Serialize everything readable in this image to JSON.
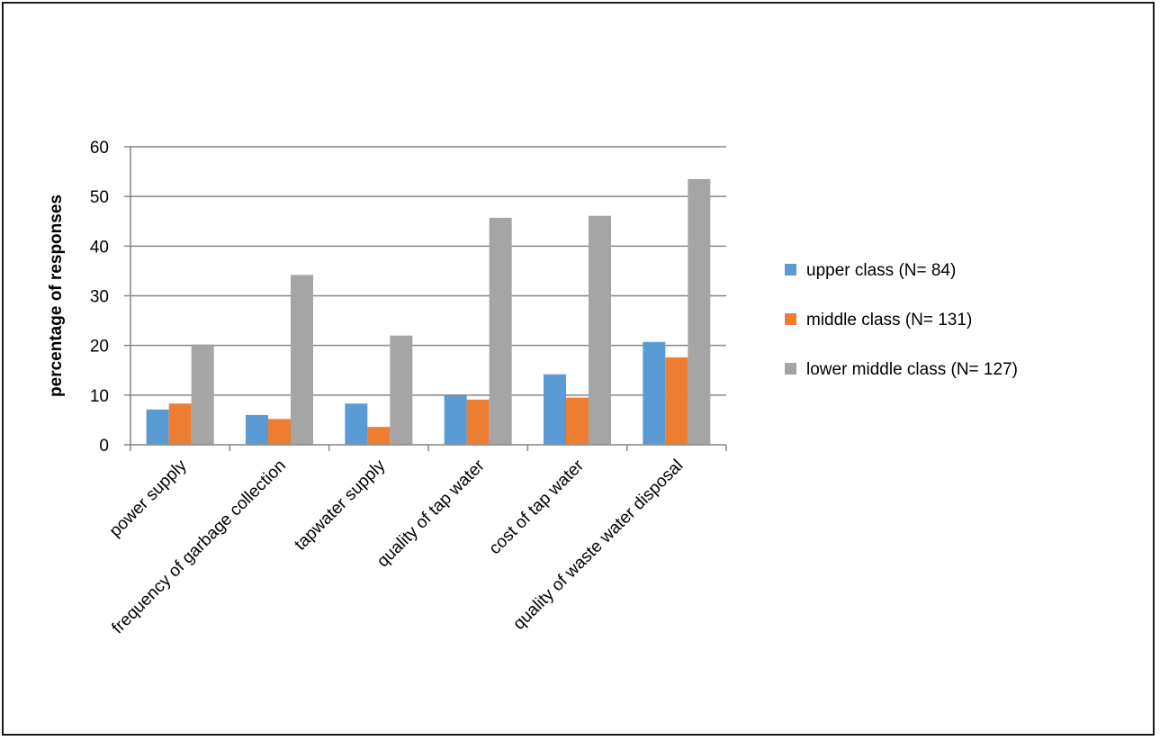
{
  "chart_data": {
    "type": "bar",
    "ylabel": "percentage of responses",
    "xlabel": "",
    "ylim": [
      0,
      60
    ],
    "yticks": [
      0,
      10,
      20,
      30,
      40,
      50,
      60
    ],
    "grid": true,
    "legend_position": "right",
    "categories": [
      "power supply",
      "frequency of garbage collection",
      "tapwater supply",
      "quality of tap water",
      "cost of tap water",
      "quality of waste water disposal"
    ],
    "series": [
      {
        "name": "upper class (N= 84)",
        "color": "#5B9BD5",
        "values": [
          7.1,
          6.0,
          8.3,
          9.9,
          14.2,
          20.7
        ]
      },
      {
        "name": "middle class (N= 131)",
        "color": "#ED7D31",
        "values": [
          8.3,
          5.2,
          3.6,
          9.1,
          9.5,
          17.6
        ]
      },
      {
        "name": "lower middle class (N= 127)",
        "color": "#A5A5A5",
        "values": [
          20.2,
          34.2,
          22.0,
          45.7,
          46.1,
          53.5
        ]
      }
    ]
  }
}
